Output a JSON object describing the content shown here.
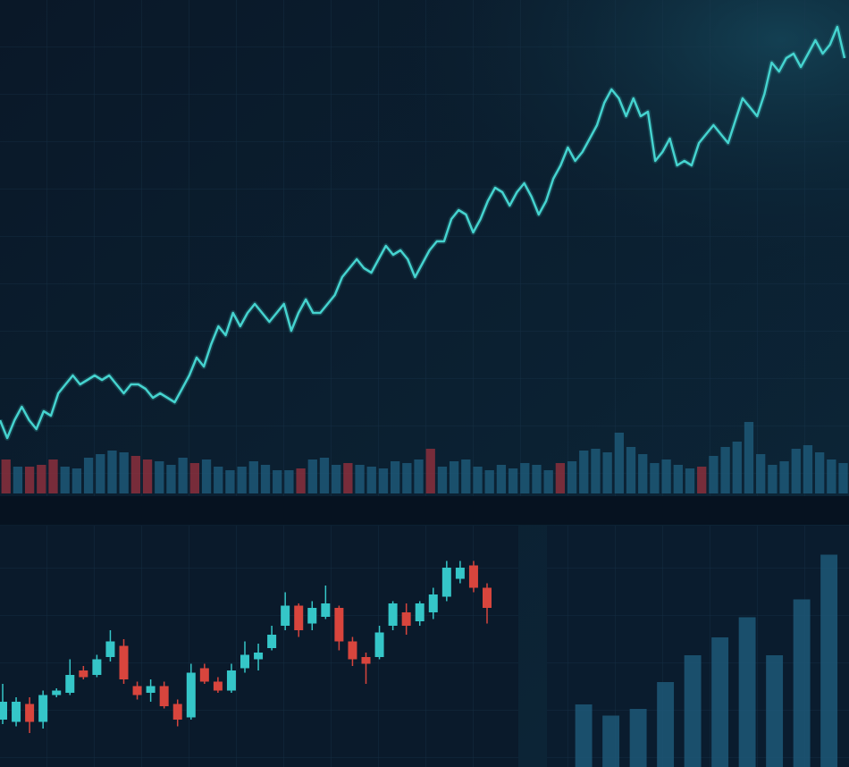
{
  "chart_data": [
    {
      "type": "line",
      "color": "#45d3cf",
      "grid": true,
      "ylim": [
        0,
        100
      ],
      "values": [
        6,
        2,
        6,
        9,
        6,
        4,
        8,
        7,
        12,
        14,
        16,
        14,
        15,
        16,
        15,
        16,
        14,
        12,
        14,
        14,
        13,
        11,
        12,
        11,
        10,
        13,
        16,
        20,
        18,
        23,
        27,
        25,
        30,
        27,
        30,
        32,
        30,
        28,
        30,
        32,
        26,
        30,
        33,
        30,
        30,
        32,
        34,
        38,
        40,
        42,
        40,
        39,
        42,
        45,
        43,
        44,
        42,
        38,
        41,
        44,
        46,
        46,
        51,
        53,
        52,
        48,
        51,
        55,
        58,
        57,
        54,
        57,
        59,
        56,
        52,
        55,
        60,
        63,
        67,
        64,
        66,
        69,
        72,
        77,
        80,
        78,
        74,
        78,
        74,
        75,
        64,
        66,
        69,
        63,
        64,
        63,
        68,
        70,
        72,
        70,
        68,
        73,
        78,
        76,
        74,
        79,
        86,
        84,
        87,
        88,
        85,
        88,
        91,
        88,
        90,
        94,
        87
      ]
    },
    {
      "type": "bar",
      "ylim": [
        0,
        100
      ],
      "values": [
        38,
        30,
        30,
        32,
        38,
        30,
        28,
        40,
        44,
        48,
        46,
        42,
        38,
        36,
        32,
        40,
        34,
        38,
        30,
        26,
        30,
        36,
        32,
        26,
        26,
        28,
        38,
        40,
        32,
        34,
        32,
        30,
        28,
        36,
        34,
        38,
        50,
        30,
        36,
        38,
        30,
        26,
        32,
        28,
        34,
        32,
        26,
        34,
        36,
        48,
        50,
        46,
        68,
        52,
        44,
        34,
        38,
        32,
        28,
        30,
        42,
        52,
        58,
        80,
        44,
        32,
        36,
        50,
        54,
        46,
        38,
        34
      ],
      "colors": [
        "#8b2f3c",
        "#1d5877",
        "#8b2f3c",
        "#8b2f3c",
        "#8b2f3c",
        "#1d5877",
        "#1d5877",
        "#1d5877",
        "#1d5877",
        "#1d5877",
        "#1d5877",
        "#8b2f3c",
        "#8b2f3c",
        "#1d5877",
        "#1d5877",
        "#1d5877",
        "#8b2f3c",
        "#1d5877",
        "#1d5877",
        "#1d5877",
        "#1d5877",
        "#1d5877",
        "#1d5877",
        "#1d5877",
        "#1d5877",
        "#8b2f3c",
        "#1d5877",
        "#1d5877",
        "#1d5877",
        "#8b2f3c",
        "#1d5877",
        "#1d5877",
        "#1d5877",
        "#1d5877",
        "#1d5877",
        "#1d5877",
        "#8b2f3c",
        "#1d5877",
        "#1d5877",
        "#1d5877",
        "#1d5877",
        "#1d5877",
        "#1d5877",
        "#1d5877",
        "#1d5877",
        "#1d5877",
        "#1d5877",
        "#8b2f3c",
        "#1d5877",
        "#1d5877",
        "#1d5877",
        "#1d5877",
        "#1d5877",
        "#1d5877",
        "#1d5877",
        "#1d5877",
        "#1d5877",
        "#1d5877",
        "#1d5877",
        "#8b2f3c",
        "#1d5877",
        "#1d5877",
        "#1d5877",
        "#1d5877",
        "#1d5877",
        "#1d5877",
        "#1d5877",
        "#1d5877",
        "#1d5877",
        "#1d5877",
        "#1d5877",
        "#1d5877"
      ]
    },
    {
      "type": "candlestick",
      "ylim": [
        0,
        100
      ],
      "grid": true,
      "up_color": "#35c6c8",
      "down_color": "#d8453d",
      "open": [
        18,
        17,
        25,
        17,
        29,
        30,
        40,
        38,
        46,
        51,
        33,
        30,
        33,
        25,
        19,
        41,
        35,
        31,
        41,
        45,
        50,
        60,
        69,
        61,
        64,
        68,
        53,
        46,
        46,
        60,
        66,
        62,
        66,
        73,
        81,
        87,
        77
      ],
      "high": [
        34,
        28,
        28,
        31,
        32,
        45,
        42,
        47,
        58,
        54,
        35,
        36,
        35,
        27,
        43,
        43,
        37,
        43,
        53,
        52,
        60,
        75,
        70,
        71,
        78,
        69,
        55,
        48,
        60,
        71,
        70,
        71,
        77,
        89,
        89,
        89,
        79
      ],
      "low": [
        16,
        15,
        12,
        14,
        28,
        29,
        36,
        37,
        44,
        34,
        27,
        26,
        23,
        15,
        18,
        34,
        30,
        30,
        39,
        40,
        49,
        58,
        55,
        58,
        63,
        49,
        42,
        34,
        45,
        58,
        56,
        60,
        63,
        71,
        79,
        75,
        61
      ],
      "close": [
        26,
        26,
        17,
        29,
        31,
        38,
        37,
        45,
        53,
        36,
        29,
        33,
        24,
        18,
        39,
        35,
        31,
        40,
        47,
        48,
        56,
        69,
        58,
        68,
        70,
        53,
        45,
        43,
        57,
        70,
        60,
        70,
        74,
        86,
        86,
        77,
        68
      ]
    },
    {
      "type": "bar",
      "color": "#1d5877",
      "grid": true,
      "ylim": [
        0,
        100
      ],
      "values": [
        28,
        23,
        26,
        38,
        50,
        58,
        67,
        50,
        75,
        95
      ]
    }
  ]
}
